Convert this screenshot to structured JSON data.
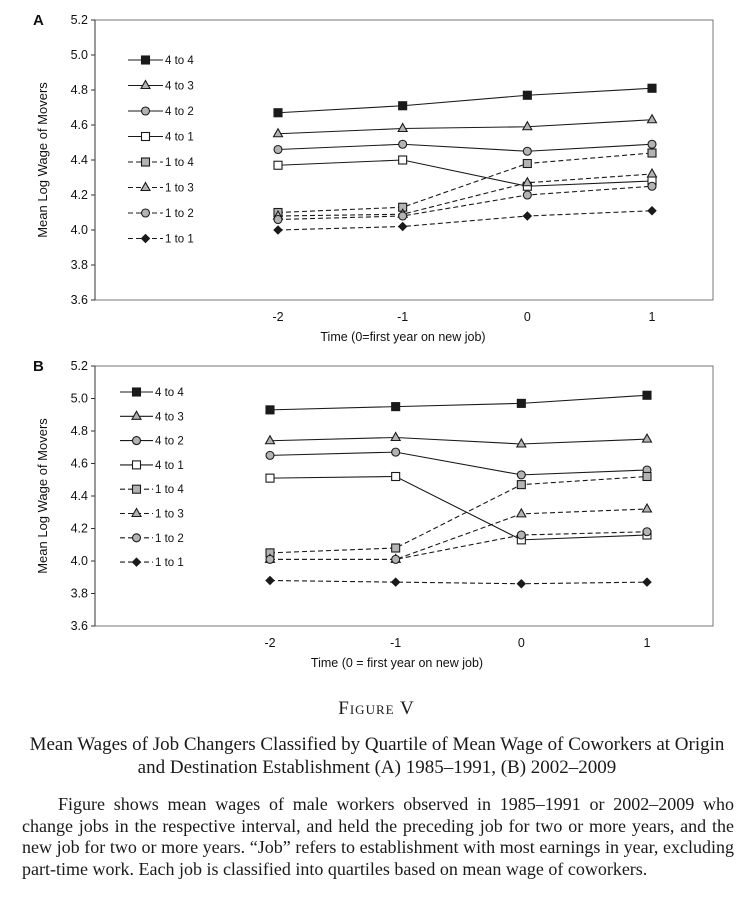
{
  "chart_data": [
    {
      "type": "line",
      "panel_label": "A",
      "x": [
        -2,
        -1,
        0,
        1
      ],
      "x_tick_labels": [
        "-2",
        "-1",
        "0",
        "1"
      ],
      "xlabel": "Time (0=first year on new job)",
      "ylabel": "Mean Log Wage of Movers",
      "ylim": [
        3.6,
        5.2
      ],
      "y_ticks": [
        "3.6",
        "3.8",
        "4.0",
        "4.2",
        "4.4",
        "4.6",
        "4.8",
        "5.0",
        "5.2"
      ],
      "grid": false,
      "legend_position": "top-left",
      "series": [
        {
          "name": "4 to 4",
          "marker": "square",
          "fill": "#1a1a1a",
          "dashed": false,
          "values": [
            4.67,
            4.71,
            4.77,
            4.81
          ]
        },
        {
          "name": "4 to 3",
          "marker": "triangle",
          "fill": "#b3b3b3",
          "dashed": false,
          "values": [
            4.55,
            4.58,
            4.59,
            4.63
          ]
        },
        {
          "name": "4 to 2",
          "marker": "circle",
          "fill": "#b3b3b3",
          "dashed": false,
          "values": [
            4.46,
            4.49,
            4.45,
            4.49
          ]
        },
        {
          "name": "4 to 1",
          "marker": "square",
          "fill": "#ffffff",
          "dashed": false,
          "values": [
            4.37,
            4.4,
            4.25,
            4.28
          ]
        },
        {
          "name": "1 to 4",
          "marker": "square",
          "fill": "#b3b3b3",
          "dashed": true,
          "values": [
            4.1,
            4.13,
            4.38,
            4.44
          ]
        },
        {
          "name": "1 to 3",
          "marker": "triangle",
          "fill": "#b3b3b3",
          "dashed": true,
          "values": [
            4.08,
            4.09,
            4.27,
            4.32
          ]
        },
        {
          "name": "1 to 2",
          "marker": "circle",
          "fill": "#b3b3b3",
          "dashed": true,
          "values": [
            4.06,
            4.08,
            4.2,
            4.25
          ]
        },
        {
          "name": "1 to 1",
          "marker": "diamond",
          "fill": "#1a1a1a",
          "dashed": true,
          "values": [
            4.0,
            4.02,
            4.08,
            4.11
          ]
        }
      ]
    },
    {
      "type": "line",
      "panel_label": "B",
      "x": [
        -2,
        -1,
        0,
        1
      ],
      "x_tick_labels": [
        "-2",
        "-1",
        "0",
        "1"
      ],
      "xlabel": "Time (0 = first year on new job)",
      "ylabel": "Mean Log Wage of Movers",
      "ylim": [
        3.6,
        5.2
      ],
      "y_ticks": [
        "3.6",
        "3.8",
        "4.0",
        "4.2",
        "4.4",
        "4.6",
        "4.8",
        "5.0",
        "5.2"
      ],
      "grid": false,
      "legend_position": "top-left",
      "series": [
        {
          "name": "4 to 4",
          "marker": "square",
          "fill": "#1a1a1a",
          "dashed": false,
          "values": [
            4.93,
            4.95,
            4.97,
            5.02
          ]
        },
        {
          "name": "4 to 3",
          "marker": "triangle",
          "fill": "#b3b3b3",
          "dashed": false,
          "values": [
            4.74,
            4.76,
            4.72,
            4.75
          ]
        },
        {
          "name": "4 to 2",
          "marker": "circle",
          "fill": "#b3b3b3",
          "dashed": false,
          "values": [
            4.65,
            4.67,
            4.53,
            4.56
          ]
        },
        {
          "name": "4 to 1",
          "marker": "square",
          "fill": "#ffffff",
          "dashed": false,
          "values": [
            4.51,
            4.52,
            4.13,
            4.16
          ]
        },
        {
          "name": "1 to 4",
          "marker": "square",
          "fill": "#b3b3b3",
          "dashed": true,
          "values": [
            4.05,
            4.08,
            4.47,
            4.52
          ]
        },
        {
          "name": "1 to 3",
          "marker": "triangle",
          "fill": "#b3b3b3",
          "dashed": true,
          "values": [
            4.01,
            4.01,
            4.29,
            4.32
          ]
        },
        {
          "name": "1 to 2",
          "marker": "circle",
          "fill": "#b3b3b3",
          "dashed": true,
          "values": [
            4.01,
            4.01,
            4.16,
            4.18
          ]
        },
        {
          "name": "1 to 1",
          "marker": "diamond",
          "fill": "#1a1a1a",
          "dashed": true,
          "values": [
            3.88,
            3.87,
            3.86,
            3.87
          ]
        }
      ]
    }
  ],
  "caption": {
    "figure_label": "Figure V",
    "title": "Mean Wages of Job Changers Classified by Quartile of Mean Wage of Coworkers at Origin and Destination Establishment (A) 1985–1991, (B) 2002–2009",
    "note": "Figure shows mean wages of male workers observed in 1985–1991 or 2002–2009 who change jobs in the respective interval, and held the preceding job for two or more years, and the new job for two or more years. “Job” refers to establishment with most earnings in year, excluding part-time work. Each job is classified into quartiles based on mean wage of coworkers."
  }
}
